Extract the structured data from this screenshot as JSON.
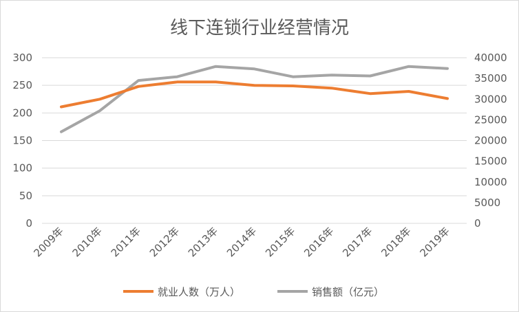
{
  "chart_data": {
    "type": "line",
    "title": "线下连锁行业经营情况",
    "categories": [
      "2009年",
      "2010年",
      "2011年",
      "2012年",
      "2013年",
      "2014年",
      "2015年",
      "2016年",
      "2017年",
      "2018年",
      "2019年"
    ],
    "left_axis": {
      "ylim": [
        0,
        300
      ],
      "ticks": [
        "0",
        "50",
        "100",
        "150",
        "200",
        "250",
        "300"
      ]
    },
    "right_axis": {
      "ylim": [
        0,
        40000
      ],
      "ticks": [
        "0",
        "5000",
        "10000",
        "15000",
        "20000",
        "25000",
        "30000",
        "35000",
        "40000"
      ]
    },
    "series": [
      {
        "name": "就业人数（万人）",
        "axis": "left",
        "color": "#ed7d31",
        "values": [
          211,
          225,
          248,
          256,
          256,
          250,
          249,
          245,
          235,
          239,
          226
        ]
      },
      {
        "name": "销售额（亿元）",
        "axis": "right",
        "color": "#a5a5a5",
        "values": [
          22100,
          27200,
          34500,
          35400,
          37900,
          37300,
          35400,
          35800,
          35600,
          37900,
          37400
        ]
      }
    ],
    "grid": true,
    "legend_position": "bottom"
  }
}
